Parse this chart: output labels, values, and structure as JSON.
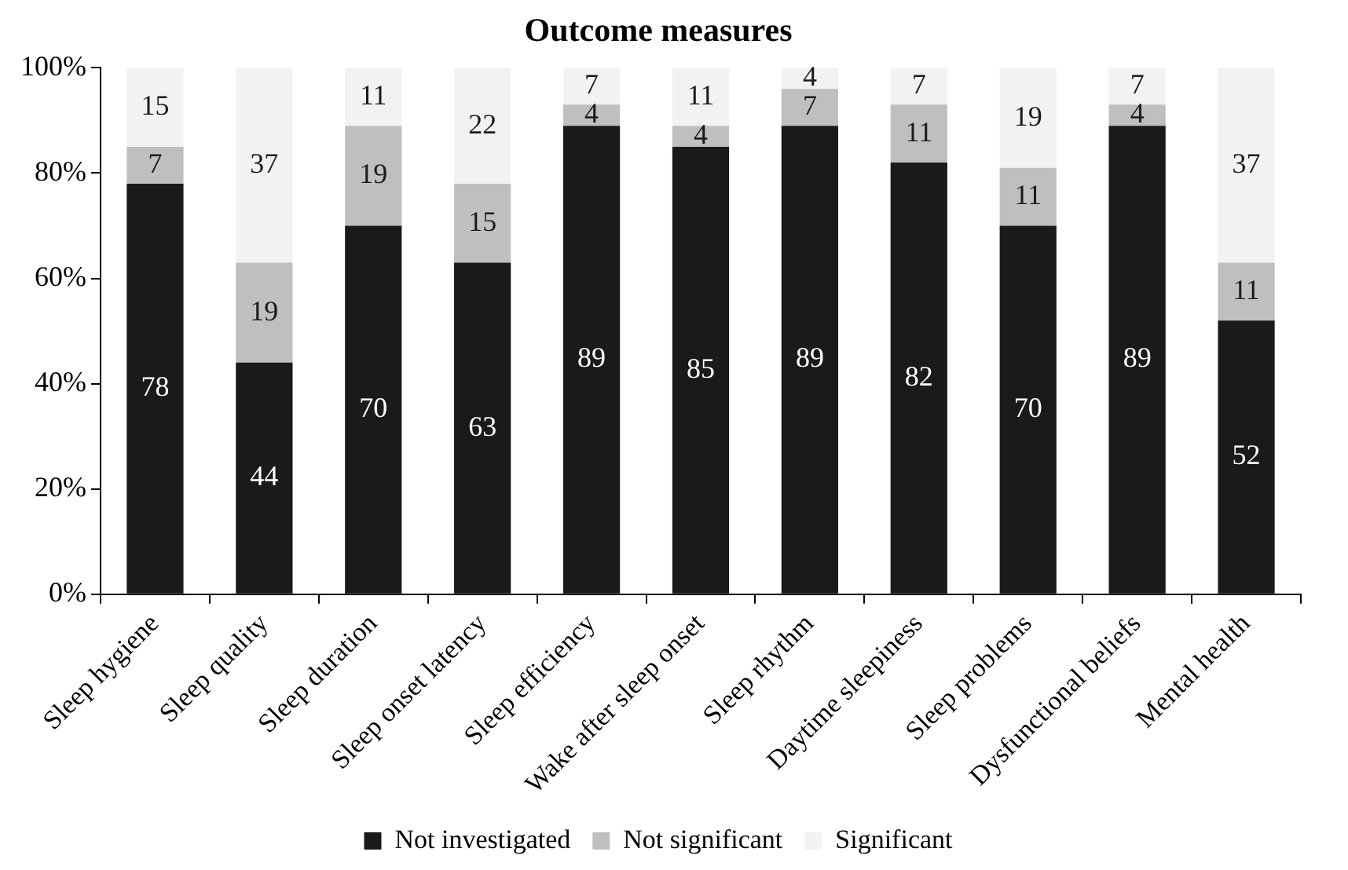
{
  "chart_data": {
    "type": "bar",
    "title": "Outcome measures",
    "stacked": true,
    "data_labels": true,
    "legend": "bottom",
    "grid": false,
    "categories": [
      "Sleep hygiene",
      "Sleep quality",
      "Sleep duration",
      "Sleep onset latency",
      "Sleep efficiency",
      "Wake after sleep onset",
      "Sleep rhythm",
      "Daytime sleepiness",
      "Sleep problems",
      "Dysfunctional beliefs",
      "Mental health"
    ],
    "series": [
      {
        "name": "Not investigated",
        "color": "#1a1a1a",
        "values": [
          78,
          44,
          70,
          63,
          89,
          85,
          89,
          82,
          70,
          89,
          52
        ]
      },
      {
        "name": "Not significant",
        "color": "#bfbfbf",
        "values": [
          7,
          19,
          19,
          15,
          4,
          4,
          7,
          11,
          11,
          4,
          11
        ]
      },
      {
        "name": "Significant",
        "color": "#f2f2f2",
        "values": [
          15,
          37,
          11,
          22,
          7,
          11,
          4,
          7,
          19,
          7,
          37
        ]
      }
    ],
    "ylim": [
      0,
      100
    ],
    "yticks": [
      {
        "value": 0,
        "label": "0%"
      },
      {
        "value": 20,
        "label": "20%"
      },
      {
        "value": 40,
        "label": "40%"
      },
      {
        "value": 60,
        "label": "60%"
      },
      {
        "value": 80,
        "label": "80%"
      },
      {
        "value": 100,
        "label": "100%"
      }
    ]
  }
}
